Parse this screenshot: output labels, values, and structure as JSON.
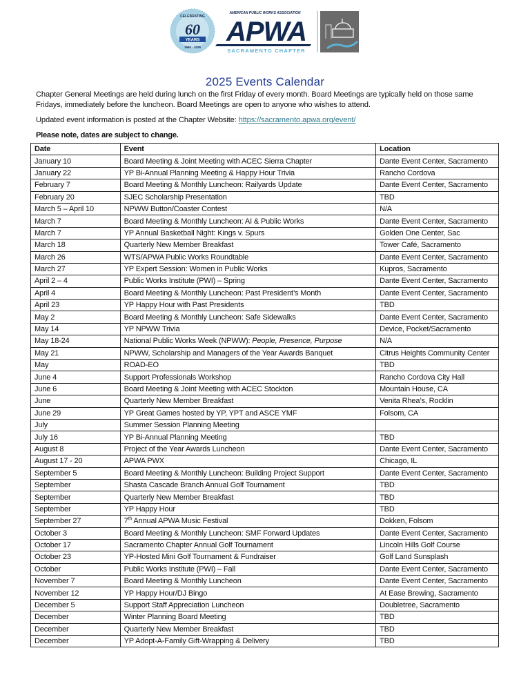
{
  "logo": {
    "badge_top": "CELEBRATING",
    "badge_number": "60",
    "badge_ribbon": "YEARS",
    "badge_years": "1965 - 2025",
    "association": "AMERICAN PUBLIC WORKS ASSOCIATION",
    "wordmark": "APWA",
    "chapter": "SACRAMENTO CHAPTER",
    "colors": {
      "navy": "#14294f",
      "light_blue": "#5bb3d6",
      "badge": "#a9d3e4",
      "gray": "#6a6a6a"
    }
  },
  "title": "2025 Events Calendar",
  "intro": {
    "paragraph1": "Chapter General Meetings are held during lunch on the first Friday of every month. Board Meetings are typically held on those same Fridays, immediately before the luncheon. Board Meetings are open to anyone who wishes to attend.",
    "paragraph2_prefix": "Updated event information is posted at the Chapter Website: ",
    "website_link": "https://sacramento.apwa.org/event/",
    "note": "Please note, dates are subject to change."
  },
  "table": {
    "headers": [
      "Date",
      "Event",
      "Location"
    ],
    "rows": [
      {
        "date": "January 10",
        "event": "Board Meeting & Joint Meeting with ACEC Sierra Chapter",
        "location": "Dante Event Center, Sacramento"
      },
      {
        "date": "January 22",
        "event": "YP Bi-Annual Planning Meeting & Happy Hour Trivia",
        "location": "Rancho Cordova"
      },
      {
        "date": "February 7",
        "event": "Board Meeting & Monthly Luncheon: Railyards Update",
        "location": "Dante Event Center, Sacramento"
      },
      {
        "date": "February 20",
        "event": "SJEC Scholarship Presentation",
        "location": "TBD"
      },
      {
        "date": "March 5 – April 10",
        "event": "NPWW Button/Coaster Contest",
        "location": "N/A"
      },
      {
        "date": "March 7",
        "event": "Board Meeting & Monthly Luncheon: AI & Public Works",
        "location": "Dante Event Center, Sacramento"
      },
      {
        "date": "March 7",
        "event": "YP Annual Basketball Night: Kings v. Spurs",
        "location": "Golden One Center, Sac"
      },
      {
        "date": "March 18",
        "event": "Quarterly New Member Breakfast",
        "location": "Tower Café, Sacramento"
      },
      {
        "date": "March 26",
        "event": "WTS/APWA Public Works Roundtable",
        "location": "Dante Event Center, Sacramento"
      },
      {
        "date": "March 27",
        "event": "YP Expert Session: Women in Public Works",
        "location": "Kupros, Sacramento"
      },
      {
        "date": "April 2 – 4",
        "event": "Public Works Institute (PWI) – Spring",
        "location": "Dante Event Center, Sacramento"
      },
      {
        "date": "April 4",
        "event": "Board Meeting & Monthly Luncheon: Past President’s Month",
        "location": "Dante Event Center, Sacramento"
      },
      {
        "date": "April 23",
        "event": "YP Happy Hour with Past Presidents",
        "location": "TBD"
      },
      {
        "date": "May 2",
        "event": "Board Meeting & Monthly Luncheon: Safe Sidewalks",
        "location": "Dante Event Center, Sacramento"
      },
      {
        "date": "May 14",
        "event": "YP NPWW Trivia",
        "location": "Device, Pocket/Sacramento"
      },
      {
        "date": "May 18-24",
        "event": "National Public Works Week (NPWW): ",
        "event_italic": "People, Presence, Purpose",
        "location": "N/A"
      },
      {
        "date": "May 21",
        "event": "NPWW, Scholarship and Managers of the Year Awards Banquet",
        "location": "Citrus Heights Community Center"
      },
      {
        "date": "May",
        "event": "ROAD-EO",
        "location": "TBD"
      },
      {
        "date": "June 4",
        "event": "Support Professionals Workshop",
        "location": "Rancho Cordova City Hall"
      },
      {
        "date": "June 6",
        "event": "Board Meeting & Joint Meeting with ACEC Stockton",
        "location": "Mountain House, CA"
      },
      {
        "date": "June",
        "event": "Quarterly New Member Breakfast",
        "location": "Venita Rhea’s, Rocklin"
      },
      {
        "date": "June 29",
        "event": "YP Great Games hosted by YP, YPT and ASCE YMF",
        "location": "Folsom, CA"
      },
      {
        "date": "July",
        "event": "Summer Session Planning Meeting",
        "location": ""
      },
      {
        "date": "July 16",
        "event": "YP Bi-Annual Planning Meeting",
        "location": "TBD"
      },
      {
        "date": "August 8",
        "event": "Project of the Year Awards Luncheon",
        "location": "Dante Event Center, Sacramento"
      },
      {
        "date": "August 17 - 20",
        "event": "APWA PWX",
        "location": "Chicago, IL"
      },
      {
        "date": "September 5",
        "event": "Board Meeting & Monthly Luncheon: Building Project Support",
        "location": "Dante Event Center, Sacramento"
      },
      {
        "date": "September",
        "event": "Shasta Cascade Branch Annual Golf Tournament",
        "location": "TBD"
      },
      {
        "date": "September",
        "event": "Quarterly New Member Breakfast",
        "location": "TBD"
      },
      {
        "date": "September",
        "event": "YP Happy Hour",
        "location": "TBD"
      },
      {
        "date": "September 27",
        "event_num": "7",
        "event_sup": "th",
        "event": " Annual APWA Music Festival",
        "location": "Dokken, Folsom"
      },
      {
        "date": "October 3",
        "event": "Board Meeting & Monthly Luncheon: SMF Forward Updates",
        "location": "Dante Event Center, Sacramento"
      },
      {
        "date": "October 17",
        "event": "Sacramento Chapter Annual Golf Tournament",
        "location": "Lincoln Hills Golf Course"
      },
      {
        "date": "October 23",
        "event": "YP-Hosted Mini Golf Tournament & Fundraiser",
        "location": "Golf Land Sunsplash"
      },
      {
        "date": "October",
        "event": "Public Works Institute (PWI) – Fall",
        "location": "Dante Event Center, Sacramento"
      },
      {
        "date": "November 7",
        "event": "Board Meeting & Monthly Luncheon",
        "location": "Dante Event Center, Sacramento"
      },
      {
        "date": "November 12",
        "event": "YP Happy Hour/DJ Bingo",
        "location": "At Ease Brewing, Sacramento"
      },
      {
        "date": "December 5",
        "event": "Support Staff Appreciation Luncheon",
        "location": "Doubletree, Sacramento"
      },
      {
        "date": "December",
        "event": "Winter Planning Board Meeting",
        "location": "TBD"
      },
      {
        "date": "December",
        "event": "Quarterly New Member Breakfast",
        "location": "TBD"
      },
      {
        "date": "December",
        "event": "YP Adopt-A-Family Gift-Wrapping & Delivery",
        "location": "TBD"
      }
    ]
  }
}
